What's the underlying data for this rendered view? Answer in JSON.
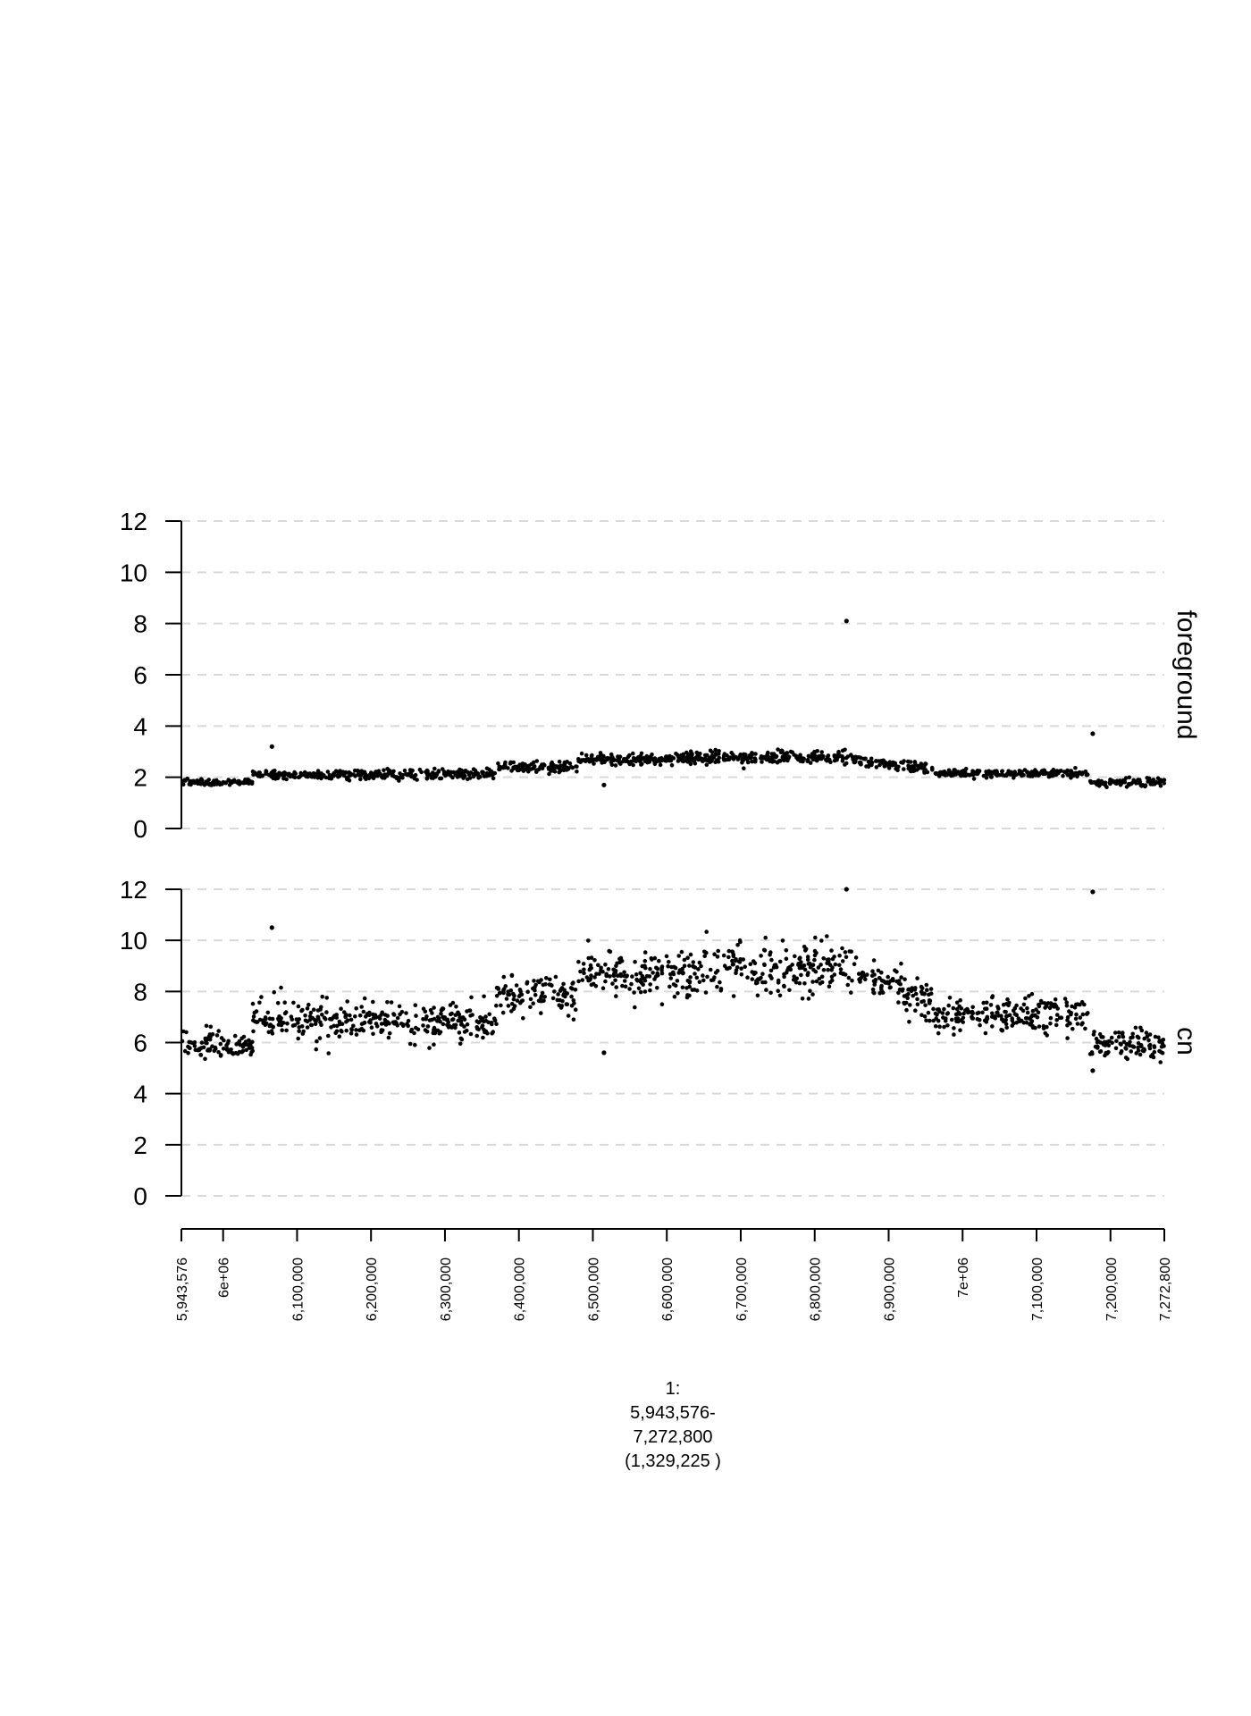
{
  "chart_data": {
    "type": "scatter",
    "x_axis": {
      "range": [
        5943576,
        7272800
      ],
      "tick_values": [
        5943576,
        6000000,
        6100000,
        6200000,
        6300000,
        6400000,
        6500000,
        6600000,
        6700000,
        6800000,
        6900000,
        7000000,
        7100000,
        7200000,
        7272800
      ],
      "tick_labels": [
        "5,943,576",
        "6e+06",
        "6,100,000",
        "6,200,000",
        "6,300,000",
        "6,400,000",
        "6,500,000",
        "6,600,000",
        "6,700,000",
        "6,800,000",
        "6,900,000",
        "7e+06",
        "7,100,000",
        "7,200,000",
        "7,272,800"
      ],
      "label_lines": [
        "1:",
        "5,943,576-",
        "7,272,800",
        "(1,329,225 )"
      ]
    },
    "panels": [
      {
        "name": "foreground",
        "ylim": [
          0,
          12
        ],
        "y_ticks": [
          0,
          2,
          4,
          6,
          8,
          10,
          12
        ],
        "grid": true,
        "level_segments": [
          {
            "x0": 5943576,
            "x1": 6040000,
            "y0": 1.8,
            "y1": 1.8,
            "noise": 0.06
          },
          {
            "x0": 6040000,
            "x1": 6140000,
            "y0": 2.1,
            "y1": 2.1,
            "noise": 0.08
          },
          {
            "x0": 6140000,
            "x1": 6370000,
            "y0": 2.1,
            "y1": 2.1,
            "noise": 0.09
          },
          {
            "x0": 6370000,
            "x1": 6480000,
            "y0": 2.4,
            "y1": 2.4,
            "noise": 0.1
          },
          {
            "x0": 6480000,
            "x1": 6610000,
            "y0": 2.7,
            "y1": 2.7,
            "noise": 0.1
          },
          {
            "x0": 6610000,
            "x1": 6850000,
            "y0": 2.75,
            "y1": 2.8,
            "noise": 0.12
          },
          {
            "x0": 6850000,
            "x1": 6960000,
            "y0": 2.7,
            "y1": 2.3,
            "noise": 0.1
          },
          {
            "x0": 6960000,
            "x1": 7170000,
            "y0": 2.15,
            "y1": 2.15,
            "noise": 0.08
          },
          {
            "x0": 7170000,
            "x1": 7272800,
            "y0": 1.8,
            "y1": 1.8,
            "noise": 0.07
          }
        ],
        "outliers": [
          {
            "x": 6066000,
            "y": 3.2
          },
          {
            "x": 6515000,
            "y": 1.7
          },
          {
            "x": 6843000,
            "y": 8.1
          },
          {
            "x": 7176000,
            "y": 3.7
          }
        ]
      },
      {
        "name": "cn",
        "ylim": [
          0,
          12
        ],
        "y_ticks": [
          0,
          2,
          4,
          6,
          8,
          10,
          12
        ],
        "grid": true,
        "level_segments": [
          {
            "x0": 5943576,
            "x1": 6040000,
            "y0": 5.9,
            "y1": 5.9,
            "noise": 0.28
          },
          {
            "x0": 6040000,
            "x1": 6140000,
            "y0": 6.9,
            "y1": 6.9,
            "noise": 0.35
          },
          {
            "x0": 6140000,
            "x1": 6370000,
            "y0": 6.8,
            "y1": 6.8,
            "noise": 0.35
          },
          {
            "x0": 6370000,
            "x1": 6480000,
            "y0": 7.8,
            "y1": 7.8,
            "noise": 0.35
          },
          {
            "x0": 6480000,
            "x1": 6610000,
            "y0": 8.6,
            "y1": 8.7,
            "noise": 0.45
          },
          {
            "x0": 6610000,
            "x1": 6850000,
            "y0": 8.7,
            "y1": 9.0,
            "noise": 0.5
          },
          {
            "x0": 6850000,
            "x1": 6960000,
            "y0": 8.8,
            "y1": 7.6,
            "noise": 0.4
          },
          {
            "x0": 6960000,
            "x1": 7170000,
            "y0": 7.0,
            "y1": 7.1,
            "noise": 0.35
          },
          {
            "x0": 7170000,
            "x1": 7272800,
            "y0": 5.9,
            "y1": 5.9,
            "noise": 0.3
          }
        ],
        "outliers": [
          {
            "x": 6066000,
            "y": 10.5
          },
          {
            "x": 6515000,
            "y": 5.6
          },
          {
            "x": 6843000,
            "y": 12.0
          },
          {
            "x": 7176000,
            "y": 11.9
          },
          {
            "x": 7176000,
            "y": 4.9
          }
        ]
      }
    ]
  }
}
